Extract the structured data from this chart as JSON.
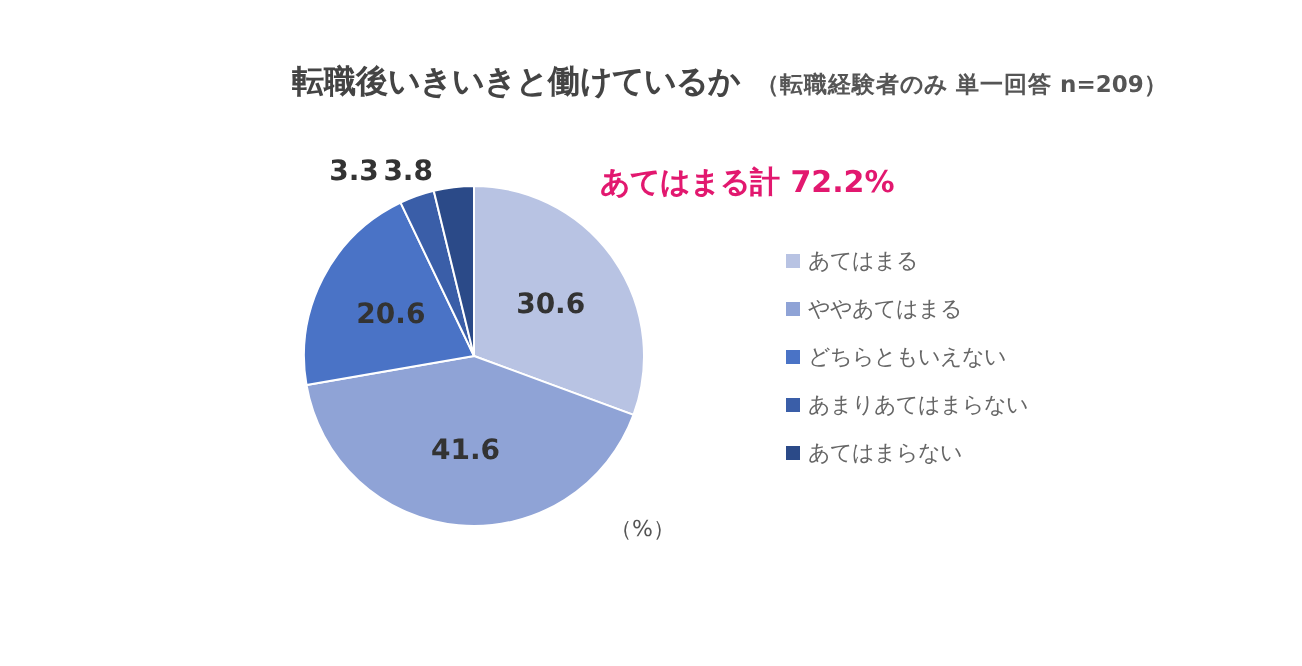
{
  "chart_data": {
    "type": "pie",
    "title": "転職後いきいきと働けているか",
    "subtitle": "（転職経験者のみ 単一回答 n=209）",
    "categories": [
      "あてはまる",
      "ややあてはまる",
      "どちらともいえない",
      "あまりあてはまらない",
      "あてはまらない"
    ],
    "values": [
      30.6,
      41.6,
      20.6,
      3.3,
      3.8
    ],
    "colors": [
      "#b8c3e3",
      "#8fa3d6",
      "#4a73c6",
      "#3a5ea8",
      "#2b4a88"
    ],
    "data_labels": true,
    "legend": "right",
    "annotations": [
      "あてはまる計 72.2%",
      "（%）"
    ]
  }
}
